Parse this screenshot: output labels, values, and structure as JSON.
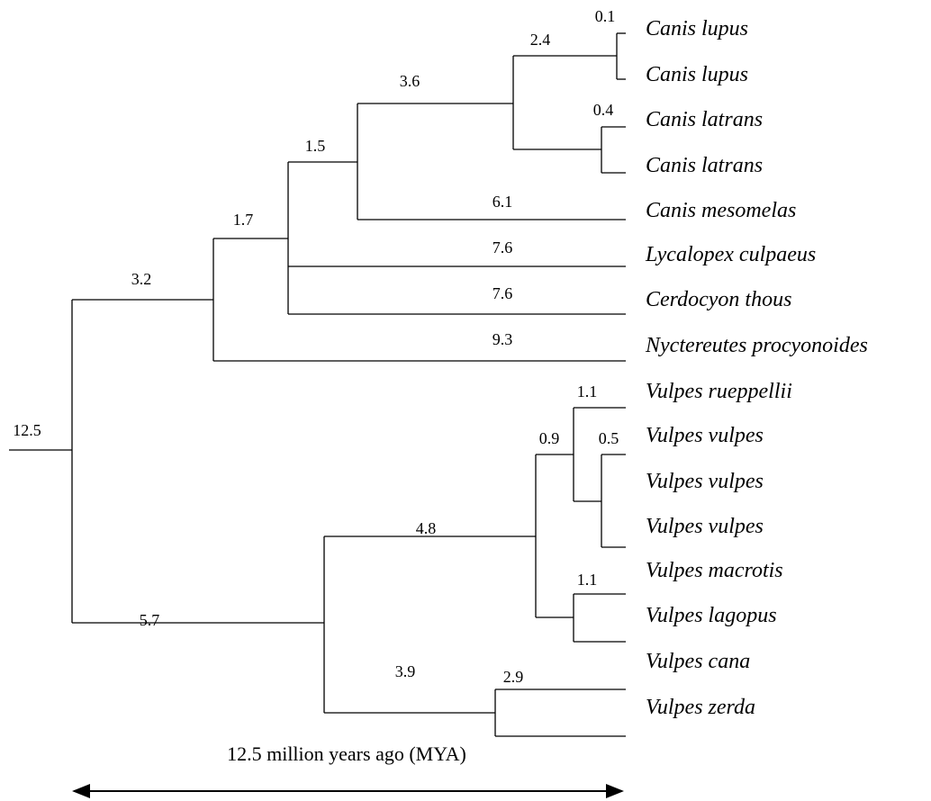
{
  "branch_labels": [
    "12.5",
    "3.2",
    "1.7",
    "1.5",
    "3.6",
    "2.4",
    "0.1",
    "0.4",
    "6.1",
    "7.6",
    "7.6",
    "9.3",
    "1.1",
    "0.9",
    "0.5",
    "4.8",
    "1.1",
    "5.7",
    "3.9",
    "2.9"
  ],
  "leaves": [
    "Canis lupus",
    "Canis lupus",
    "Canis latrans",
    "Canis latrans",
    "Canis mesomelas",
    "Lycalopex culpaeus",
    "Cerdocyon thous",
    "Nyctereutes procyonoides",
    "Vulpes rueppellii",
    "Vulpes vulpes",
    "Vulpes vulpes",
    "Vulpes vulpes",
    "Vulpes macrotis",
    "Vulpes lagopus",
    "Vulpes cana",
    "Vulpes zerda"
  ],
  "scale_label": "12.5 million years ago (MYA)"
}
